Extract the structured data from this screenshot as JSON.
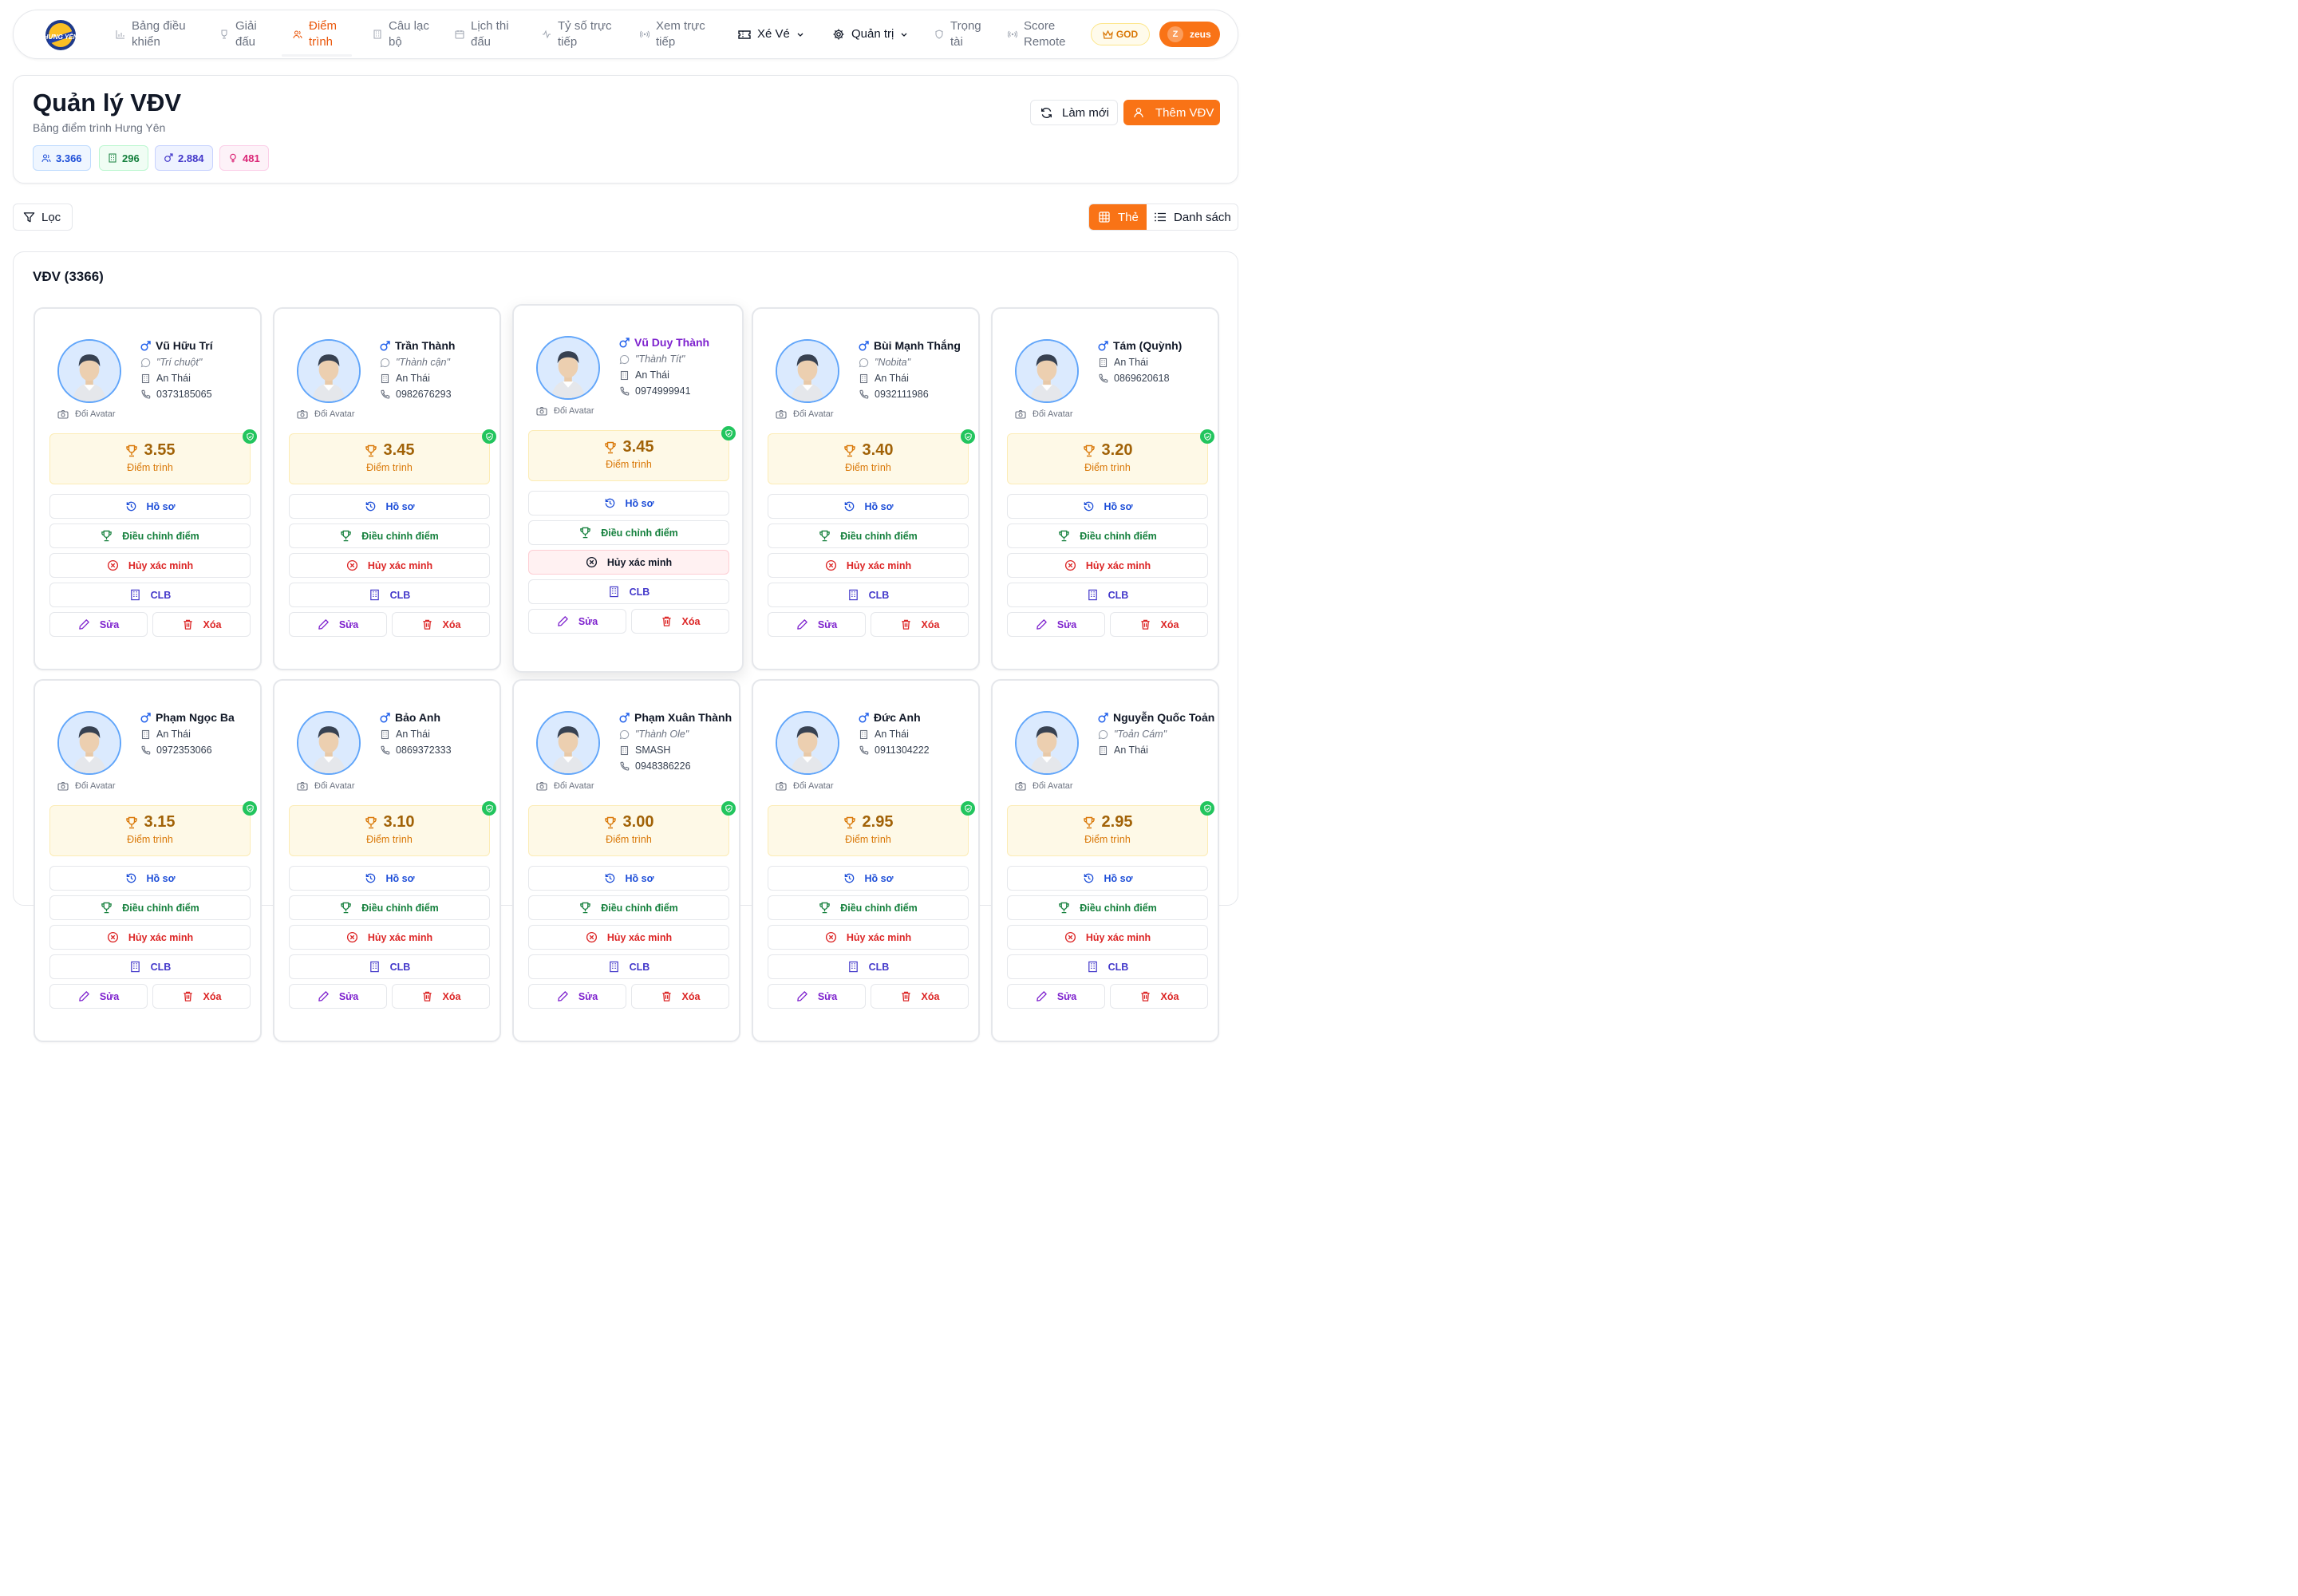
{
  "nav": {
    "logo_text": "HƯNG YÊN",
    "items": [
      {
        "label": "Bảng điều khiển",
        "icon": "bar-chart-icon"
      },
      {
        "label": "Giải đấu",
        "icon": "trophy-icon"
      },
      {
        "label": "Điểm trình",
        "icon": "users-icon",
        "active": true
      },
      {
        "label": "Câu lạc bộ",
        "icon": "building-icon"
      },
      {
        "label": "Lịch thi đấu",
        "icon": "calendar-icon"
      },
      {
        "label": "Tỷ số trực tiếp",
        "icon": "activity-icon"
      },
      {
        "label": "Xem trực tiếp",
        "icon": "radio-icon"
      },
      {
        "label": "Xé Vé",
        "icon": "ticket-icon"
      },
      {
        "label": "Quản trị",
        "icon": "gear-icon"
      },
      {
        "label": "Trọng tài",
        "icon": "shield-icon"
      },
      {
        "label": "Score Remote",
        "icon": "radio-icon"
      }
    ],
    "role_badge": "GOD",
    "user_initial": "Z",
    "user_name": "zeus"
  },
  "header": {
    "title": "Quản lý VĐV",
    "subtitle": "Bảng điểm trình Hưng Yên",
    "stats": [
      {
        "value": "3.366",
        "icon": "users-icon"
      },
      {
        "value": "296",
        "icon": "building-icon"
      },
      {
        "value": "2.884",
        "icon": "male-icon"
      },
      {
        "value": "481",
        "icon": "female-icon"
      }
    ],
    "refresh_label": "Làm mới",
    "add_label": "Thêm VĐV"
  },
  "toolbar": {
    "filter_label": "Lọc",
    "view_card_label": "Thẻ",
    "view_list_label": "Danh sách"
  },
  "list": {
    "title": "VĐV (3366)",
    "labels": {
      "change_avatar": "Đổi Avatar",
      "score_label": "Điểm trình",
      "profile": "Hồ sơ",
      "adjust": "Điều chỉnh điểm",
      "unverify": "Hủy xác minh",
      "club": "CLB",
      "edit": "Sửa",
      "delete": "Xóa"
    },
    "players": [
      {
        "name": "Vũ Hữu Trí",
        "nickname": "\"Trí chuột\"",
        "club": "An Thái",
        "phone": "0373185065",
        "score": "3.55"
      },
      {
        "name": "Trần Thành",
        "nickname": "\"Thành cận\"",
        "club": "An Thái",
        "phone": "0982676293",
        "score": "3.45"
      },
      {
        "name": "Vũ Duy Thành",
        "nickname": "\"Thành Tít\"",
        "club": "An Thái",
        "phone": "0974999941",
        "score": "3.45"
      },
      {
        "name": "Bùi Mạnh Thắng",
        "nickname": "\"Nobita\"",
        "club": "An Thái",
        "phone": "0932111986",
        "score": "3.40"
      },
      {
        "name": "Tám (Quỳnh)",
        "nickname": "",
        "club": "An Thái",
        "phone": "0869620618",
        "score": "3.20"
      },
      {
        "name": "Phạm Ngọc Ba",
        "nickname": "",
        "club": "An Thái",
        "phone": "0972353066",
        "score": "3.15"
      },
      {
        "name": "Bảo Anh",
        "nickname": "",
        "club": "An Thái",
        "phone": "0869372333",
        "score": "3.10"
      },
      {
        "name": "Phạm Xuân Thành",
        "nickname": "\"Thành Ole\"",
        "club": "SMASH",
        "phone": "0948386226",
        "score": "3.00"
      },
      {
        "name": "Đức Anh",
        "nickname": "",
        "club": "An Thái",
        "phone": "0911304222",
        "score": "2.95"
      },
      {
        "name": "Nguyễn Quốc Toản",
        "nickname": "\"Toản Cám\"",
        "club": "An Thái",
        "phone": "",
        "score": "2.95"
      }
    ]
  },
  "colors": {
    "accent": "#f97316",
    "verified": "#22c55e",
    "score_bg": "#fef9e7"
  }
}
